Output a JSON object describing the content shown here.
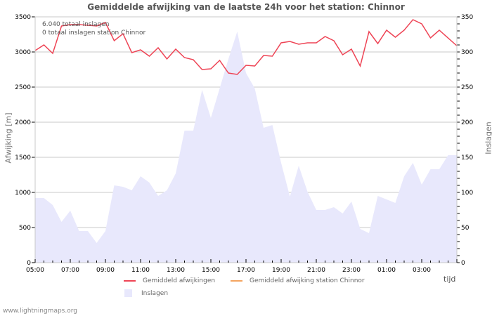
{
  "header": {
    "title": "Gemiddelde afwijking van de laatste 24h voor het station: Chinnor"
  },
  "info": {
    "total_strikes": "6.040 totaal inslagen",
    "station_strikes": "0 totaal inslagen station Chinnor"
  },
  "axes": {
    "left_label": "Afwijking  [m]",
    "right_label": "Inslagen",
    "x_unit": "tijd"
  },
  "legend": {
    "item1": "Gemiddeld afwijkingen",
    "item2": "Gemiddeld afwijking station Chinnor",
    "item3": "Inslagen"
  },
  "colors": {
    "deviation_line": "#ee4455",
    "station_line": "#f4a460",
    "strikes_area": "#e8e8fc",
    "grid": "#c8c8c8"
  },
  "footer": {
    "site": "www.lightningmaps.org"
  },
  "chart_data": {
    "type": "line",
    "title": "Gemiddelde afwijking van de laatste 24h voor het station: Chinnor",
    "xlabel": "tijd",
    "ylabel": "Afwijking  [m]",
    "y2label": "Inslagen",
    "ylim": [
      0,
      3500
    ],
    "y2lim": [
      0,
      350
    ],
    "yticks": [
      0,
      500,
      1000,
      1500,
      2000,
      2500,
      3000,
      3500
    ],
    "y2ticks": [
      0,
      50,
      100,
      150,
      200,
      250,
      300,
      350
    ],
    "xticks": [
      "05:00",
      "07:00",
      "09:00",
      "11:00",
      "13:00",
      "15:00",
      "17:00",
      "19:00",
      "21:00",
      "23:00",
      "01:00",
      "03:00"
    ],
    "grid": true,
    "legend_position": "bottom",
    "x": [
      "05:00",
      "05:30",
      "06:00",
      "06:30",
      "07:00",
      "07:30",
      "08:00",
      "08:30",
      "09:00",
      "09:30",
      "10:00",
      "10:30",
      "11:00",
      "11:30",
      "12:00",
      "12:30",
      "13:00",
      "13:30",
      "14:00",
      "14:30",
      "15:00",
      "15:30",
      "16:00",
      "16:30",
      "17:00",
      "17:30",
      "18:00",
      "18:30",
      "19:00",
      "19:30",
      "20:00",
      "20:30",
      "21:00",
      "21:30",
      "22:00",
      "22:30",
      "23:00",
      "23:30",
      "00:00",
      "00:30",
      "01:00",
      "01:30",
      "02:00",
      "02:30",
      "03:00",
      "03:30",
      "04:00",
      "04:30"
    ],
    "series": [
      {
        "name": "Gemiddeld afwijkingen",
        "axis": "left",
        "type": "line",
        "values": [
          3020,
          3100,
          2980,
          3370,
          3390,
          3390,
          3380,
          3370,
          3420,
          3160,
          3260,
          2990,
          3030,
          2940,
          3060,
          2900,
          3040,
          2920,
          2890,
          2750,
          2760,
          2880,
          2700,
          2680,
          2810,
          2800,
          2950,
          2940,
          3130,
          3150,
          3110,
          3130,
          3130,
          3220,
          3160,
          2960,
          3040,
          2800,
          3290,
          3120,
          3310,
          3210,
          3310,
          3460,
          3400,
          3200,
          3310,
          3090
        ]
      },
      {
        "name": "Gemiddeld afwijking station Chinnor",
        "axis": "left",
        "type": "line",
        "values": []
      },
      {
        "name": "Inslagen",
        "axis": "right",
        "type": "area",
        "values": [
          92,
          92,
          82,
          58,
          74,
          45,
          45,
          28,
          45,
          110,
          108,
          103,
          123,
          114,
          95,
          103,
          127,
          188,
          188,
          246,
          206,
          248,
          290,
          329,
          270,
          248,
          192,
          196,
          142,
          94,
          138,
          101,
          75,
          75,
          79,
          70,
          87,
          48,
          42,
          95,
          90,
          85,
          123,
          142,
          111,
          133,
          133,
          153
        ]
      }
    ]
  }
}
